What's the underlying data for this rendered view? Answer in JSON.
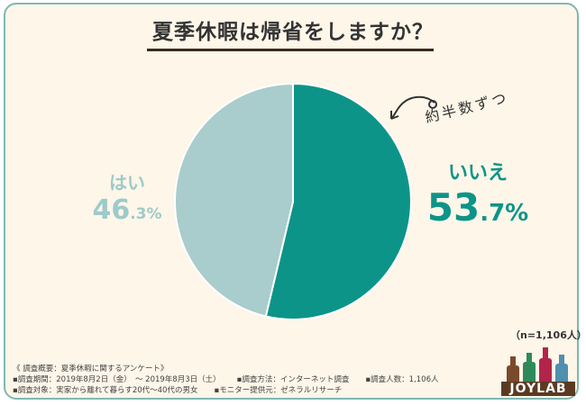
{
  "title": "夏季休暇は帰省をしますか？",
  "chart_data": {
    "type": "pie",
    "title": "夏季休暇は帰省をしますか？",
    "slices": [
      {
        "label": "いいえ",
        "value": 53.7,
        "color": "#0d9488"
      },
      {
        "label": "はい",
        "value": 46.3,
        "color": "#a9cccc"
      }
    ],
    "start_angle_deg": 0,
    "direction": "clockwise"
  },
  "labels": {
    "yes_name": "はい",
    "yes_pct_int": "46",
    "yes_pct_dec": ".3%",
    "no_name": "いいえ",
    "no_pct_int": "53",
    "no_pct_dec": ".7%"
  },
  "annotation": "約半数ずつ",
  "sample_size": "（n=1,106人）",
  "footer": {
    "heading": "《 調査概要：夏季休暇に関するアンケート》",
    "period": "▪調査期間：2019年8月2日（金）　～ 2019年8月3日（土）",
    "method": "▪調査方法：インターネット調査",
    "count": "▪調査人数：1,106人",
    "target": "▪調査対象：実家から離れて暮らす20代～40代の男女",
    "provider": "▪モニター提供元：ゼネラルリサーチ"
  },
  "logo": {
    "text": "JOYLAB"
  },
  "colors": {
    "background": "#fdf6e9",
    "border": "#7fb8b3",
    "no_slice": "#0d9488",
    "yes_slice": "#a9cccc"
  }
}
